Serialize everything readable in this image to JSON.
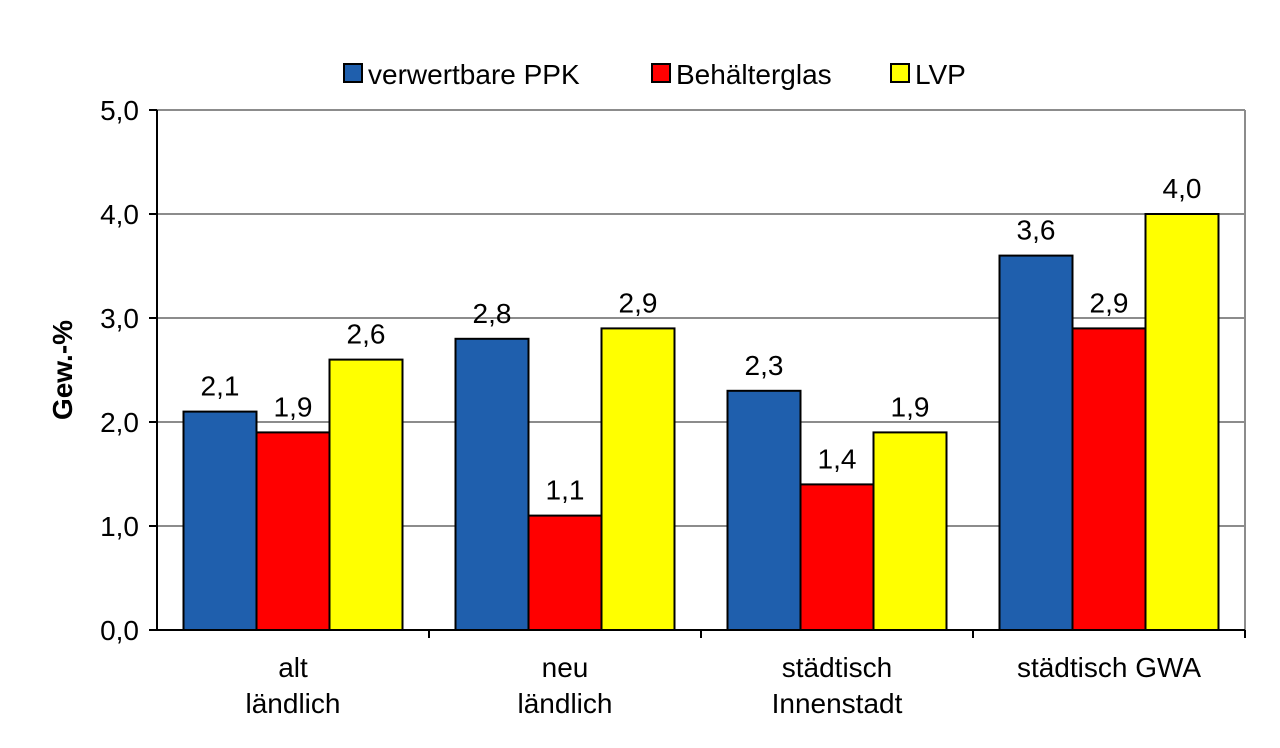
{
  "chart_data": {
    "type": "bar",
    "categories": [
      [
        "alt",
        "ländlich"
      ],
      [
        "neu",
        "ländlich"
      ],
      [
        "städtisch",
        "Innenstadt"
      ],
      [
        "städtisch GWA"
      ]
    ],
    "series": [
      {
        "name": "verwertbare PPK",
        "color": "#1f5fad",
        "values": [
          2.1,
          2.8,
          2.3,
          3.6
        ],
        "labels": [
          "2,1",
          "2,8",
          "2,3",
          "3,6"
        ]
      },
      {
        "name": "Behälterglas",
        "color": "#ff0000",
        "values": [
          1.9,
          1.1,
          1.4,
          2.9
        ],
        "labels": [
          "1,9",
          "1,1",
          "1,4",
          "2,9"
        ]
      },
      {
        "name": "LVP",
        "color": "#ffff00",
        "values": [
          2.6,
          2.9,
          1.9,
          4.0
        ],
        "labels": [
          "2,6",
          "2,9",
          "1,9",
          "4,0"
        ]
      }
    ],
    "ylabel": "Gew.-%",
    "xlabel": "",
    "ylim": [
      0,
      5
    ],
    "yticks": [
      0,
      1,
      2,
      3,
      4,
      5
    ],
    "ytick_labels": [
      "0,0",
      "1,0",
      "2,0",
      "3,0",
      "4,0",
      "5,0"
    ],
    "grid": true,
    "legend_position": "top"
  }
}
